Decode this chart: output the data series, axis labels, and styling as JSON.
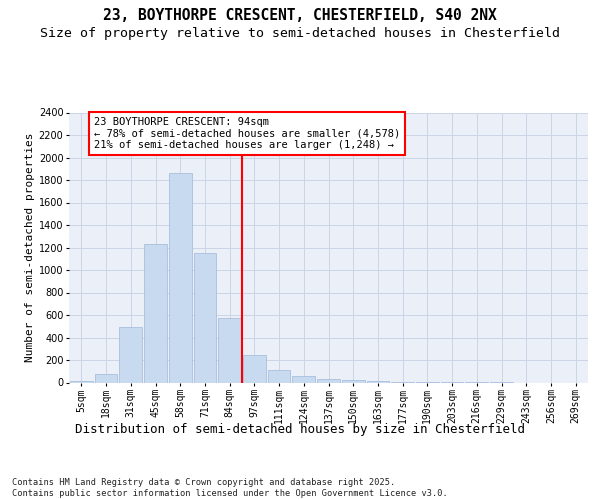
{
  "title_line1": "23, BOYTHORPE CRESCENT, CHESTERFIELD, S40 2NX",
  "title_line2": "Size of property relative to semi-detached houses in Chesterfield",
  "xlabel": "Distribution of semi-detached houses by size in Chesterfield",
  "ylabel": "Number of semi-detached properties",
  "bar_labels": [
    "5sqm",
    "18sqm",
    "31sqm",
    "45sqm",
    "58sqm",
    "71sqm",
    "84sqm",
    "97sqm",
    "111sqm",
    "124sqm",
    "137sqm",
    "150sqm",
    "163sqm",
    "177sqm",
    "190sqm",
    "203sqm",
    "216sqm",
    "229sqm",
    "243sqm",
    "256sqm",
    "269sqm"
  ],
  "bar_values": [
    10,
    75,
    490,
    1230,
    1860,
    1150,
    570,
    245,
    115,
    60,
    35,
    20,
    10,
    5,
    3,
    2,
    1,
    1,
    0,
    0,
    0
  ],
  "bar_color": "#c8daf0",
  "bar_edge_color": "#a0b8d8",
  "property_label": "23 BOYTHORPE CRESCENT: 94sqm",
  "pct_smaller": 78,
  "pct_smaller_count": "4,578",
  "pct_larger": 21,
  "pct_larger_count": "1,248",
  "vline_color": "red",
  "vline_bin_index": 6.5,
  "ylim": [
    0,
    2400
  ],
  "yticks": [
    0,
    200,
    400,
    600,
    800,
    1000,
    1200,
    1400,
    1600,
    1800,
    2000,
    2200,
    2400
  ],
  "grid_color": "#ccd5e5",
  "background_color": "#eaeff8",
  "footer": "Contains HM Land Registry data © Crown copyright and database right 2025.\nContains public sector information licensed under the Open Government Licence v3.0.",
  "title_fontsize": 10.5,
  "subtitle_fontsize": 9.5,
  "tick_fontsize": 7,
  "ylabel_fontsize": 8,
  "xlabel_fontsize": 9,
  "ann_fontsize": 7.5,
  "footer_fontsize": 6.2
}
